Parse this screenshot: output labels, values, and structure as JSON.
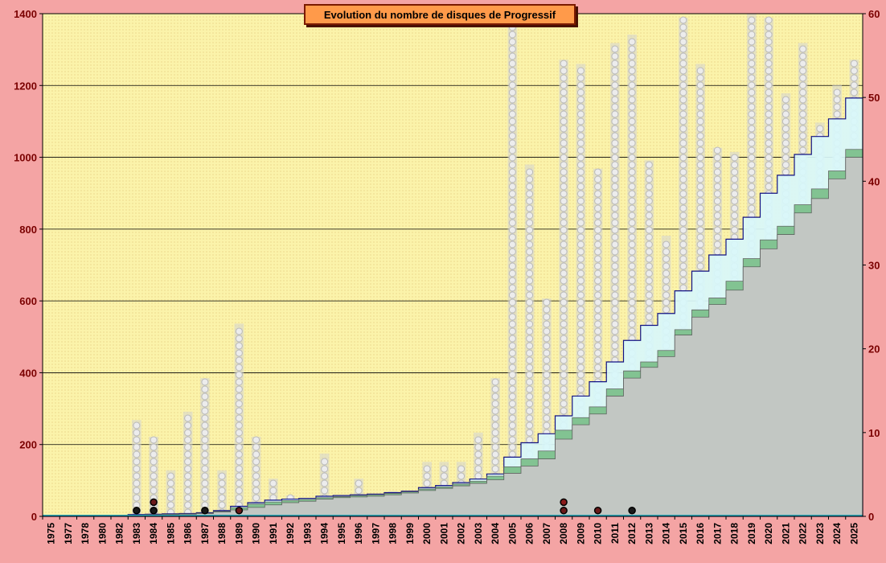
{
  "chart_data": {
    "type": "bar",
    "title": "Evolution du nombre de disques de Progressif",
    "xlabel": "",
    "ylabel": "",
    "y_left": {
      "min": 0,
      "max": 1400,
      "ticks": [
        0,
        200,
        400,
        600,
        800,
        1000,
        1200,
        1400
      ]
    },
    "y_right": {
      "min": 0,
      "max": 60,
      "ticks": [
        0,
        10,
        20,
        30,
        40,
        50,
        60
      ]
    },
    "grid": true,
    "categories": [
      "1975",
      "1977",
      "1978",
      "1980",
      "1982",
      "1983",
      "1984",
      "1985",
      "1986",
      "1987",
      "1988",
      "1989",
      "1990",
      "1991",
      "1992",
      "1993",
      "1994",
      "1995",
      "1996",
      "1997",
      "1998",
      "1999",
      "2000",
      "2001",
      "2002",
      "2003",
      "2004",
      "2005",
      "2006",
      "2007",
      "2008",
      "2009",
      "2010",
      "2011",
      "2012",
      "2013",
      "2014",
      "2015",
      "2016",
      "2017",
      "2018",
      "2019",
      "2020",
      "2021",
      "2022",
      "2023",
      "2024",
      "2025"
    ],
    "series": [
      {
        "axis": "left",
        "style": "stacked-cumulative",
        "values": [
          0,
          0,
          0,
          0,
          0,
          2,
          4,
          5,
          6,
          8,
          12,
          18,
          25,
          32,
          38,
          42,
          48,
          52,
          54,
          56,
          60,
          65,
          72,
          78,
          85,
          92,
          102,
          120,
          140,
          160,
          215,
          255,
          285,
          335,
          385,
          415,
          445,
          505,
          555,
          590,
          630,
          695,
          745,
          785,
          845,
          885,
          940,
          1000
        ]
      },
      {
        "axis": "left",
        "style": "stacked-cumulative",
        "values": [
          0,
          0,
          0,
          0,
          0,
          4,
          5,
          6,
          7,
          9,
          14,
          24,
          34,
          40,
          44,
          47,
          52,
          55,
          58,
          60,
          64,
          68,
          76,
          82,
          90,
          98,
          112,
          138,
          160,
          182,
          240,
          275,
          305,
          355,
          405,
          430,
          462,
          520,
          575,
          608,
          655,
          718,
          770,
          808,
          868,
          912,
          962,
          1022
        ]
      },
      {
        "axis": "left",
        "style": "stacked-cumulative",
        "values": [
          0,
          0,
          0,
          0,
          0,
          5,
          6,
          7,
          8,
          10,
          16,
          28,
          38,
          45,
          48,
          50,
          56,
          58,
          60,
          62,
          66,
          70,
          80,
          86,
          94,
          104,
          118,
          165,
          205,
          230,
          280,
          335,
          375,
          430,
          490,
          532,
          565,
          628,
          683,
          728,
          772,
          833,
          900,
          950,
          1008,
          1058,
          1107,
          1165
        ]
      },
      {
        "axis": "right",
        "style": "column-gray",
        "values": [
          0,
          0,
          0,
          0,
          0,
          11.5,
          9.5,
          5.5,
          12.5,
          16.5,
          5.5,
          23,
          9.5,
          4.5,
          2.5,
          1.5,
          7.5,
          1,
          4.5,
          1,
          3,
          3,
          6.5,
          6.5,
          6.5,
          10,
          16.5,
          59,
          42,
          26,
          54.5,
          54,
          41.5,
          56.5,
          57.5,
          42.5,
          33.5,
          59.5,
          54,
          44,
          43.5,
          60,
          59.5,
          50.5,
          56.5,
          47,
          51.5,
          54.5
        ]
      }
    ],
    "markers_right": [
      {
        "x": "1983",
        "value": 0.5,
        "color": "#1a1a1a"
      },
      {
        "x": "1984",
        "value": 1.5,
        "color": "#6a1a1a"
      },
      {
        "x": "1984",
        "value": 0.5,
        "color": "#1a1a1a"
      },
      {
        "x": "1987",
        "value": 0.5,
        "color": "#1a1a1a"
      },
      {
        "x": "1989",
        "value": 0.5,
        "color": "#6a1a1a"
      },
      {
        "x": "2008",
        "value": 1.5,
        "color": "#8a1a1a"
      },
      {
        "x": "2008",
        "value": 0.5,
        "color": "#6a1a1a"
      },
      {
        "x": "2010",
        "value": 0.5,
        "color": "#6a1a1a"
      },
      {
        "x": "2012",
        "value": 0.5,
        "color": "#1a1a1a"
      }
    ],
    "colors": {
      "outer_bg": "#f4a4a4",
      "plot_bg": "#fbf3aa",
      "fill_main": "#c8c8c8",
      "fill_mid": "#7bbf8a",
      "fill_top": "#d9f8fb",
      "stroke_line": "#000080",
      "grid": "#000000",
      "column": "#d4d4d4",
      "title_bg": "#ff9a4a"
    }
  }
}
